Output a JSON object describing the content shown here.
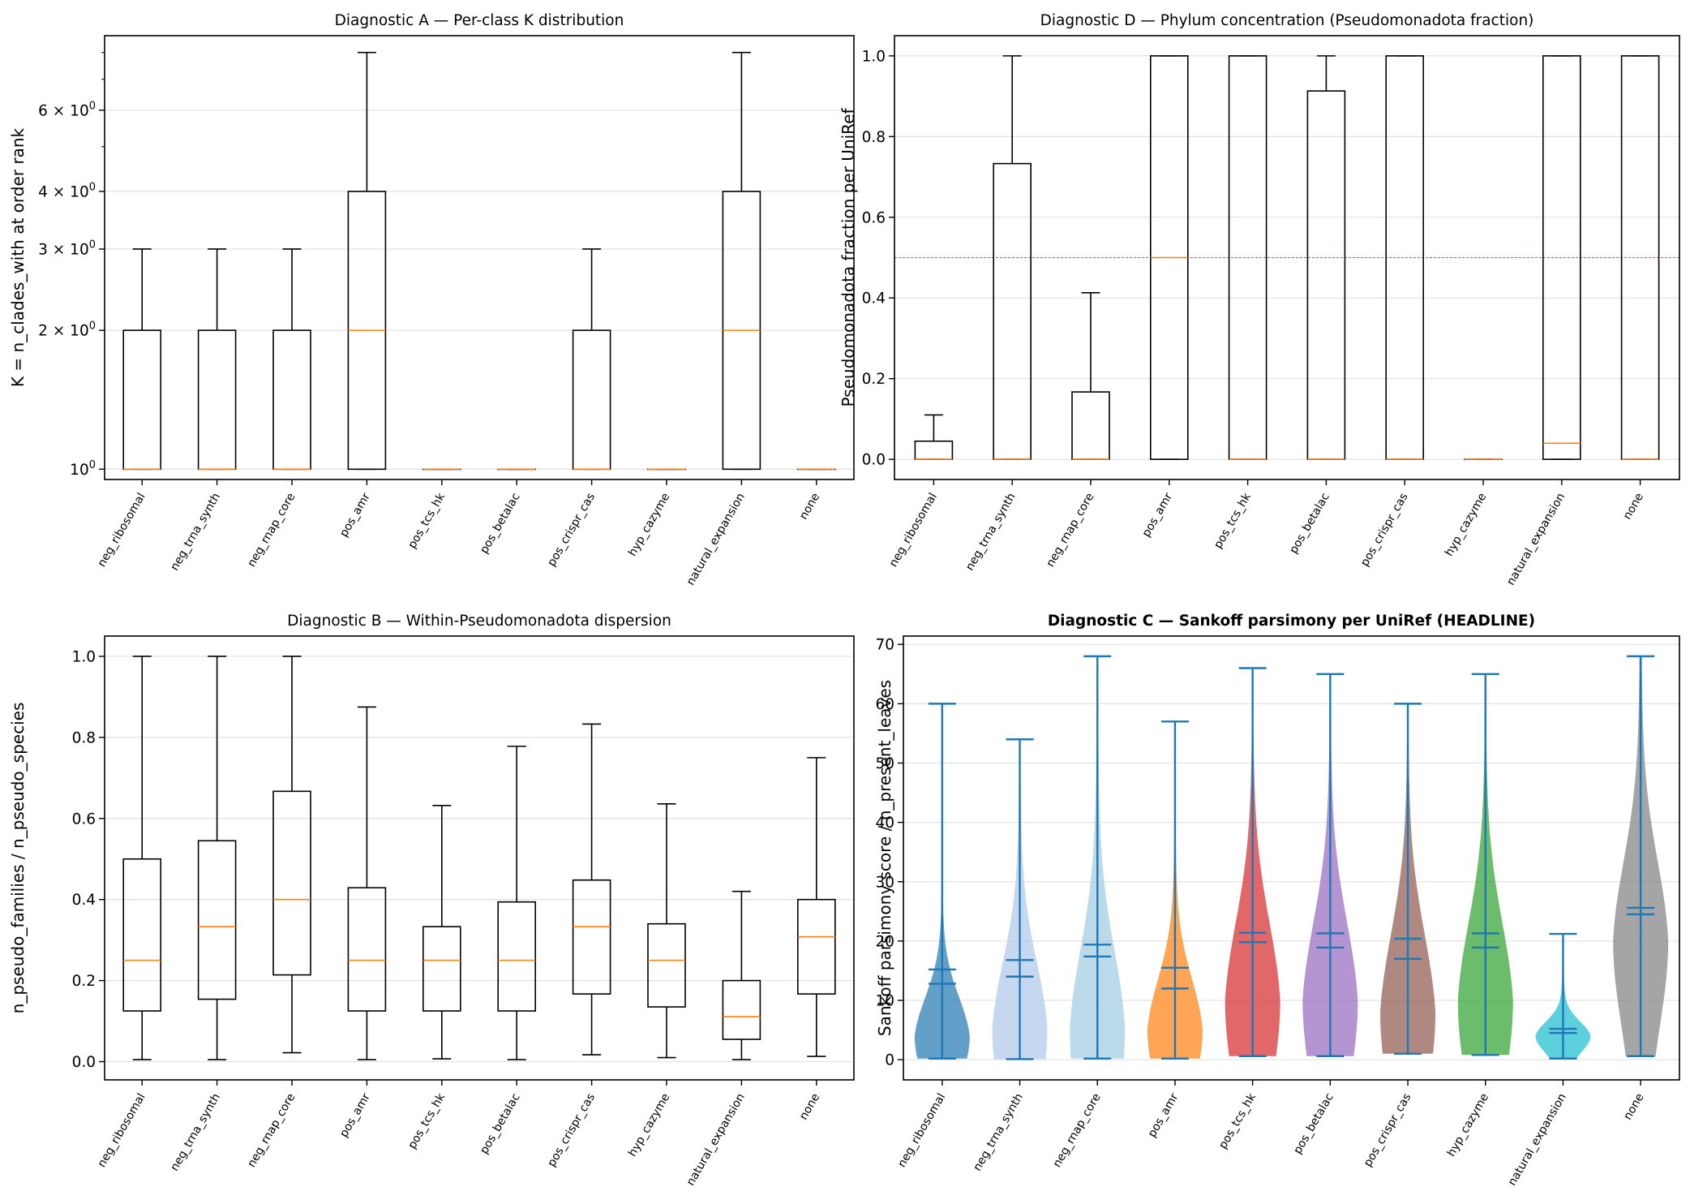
{
  "chart_data": [
    {
      "id": "A",
      "type": "box",
      "title": "Diagnostic A — Per-class K distribution",
      "title_bold": false,
      "ylabel": "K = n_clades_with at order rank",
      "yscale": "log",
      "ylim": [
        0.95,
        8.7
      ],
      "yticks": [
        {
          "value": 1,
          "base": "10",
          "exp": "0",
          "coef": ""
        },
        {
          "value": 2,
          "base": "10",
          "exp": "0",
          "coef": "2 × "
        },
        {
          "value": 3,
          "base": "10",
          "exp": "0",
          "coef": "3 × "
        },
        {
          "value": 4,
          "base": "10",
          "exp": "0",
          "coef": "4 × "
        },
        {
          "value": 6,
          "base": "10",
          "exp": "0",
          "coef": "6 × "
        }
      ],
      "minor_ticks": [
        5,
        7,
        8
      ],
      "grid": true,
      "categories": [
        "neg_ribosomal",
        "neg_trna_synth",
        "neg_rnap_core",
        "pos_amr",
        "pos_tcs_hk",
        "pos_betalac",
        "pos_crispr_cas",
        "hyp_cazyme",
        "natural_expansion",
        "none"
      ],
      "boxes": [
        {
          "wlo": 1,
          "q1": 1,
          "med": 1,
          "q3": 2,
          "whi": 3
        },
        {
          "wlo": 1,
          "q1": 1,
          "med": 1,
          "q3": 2,
          "whi": 3
        },
        {
          "wlo": 1,
          "q1": 1,
          "med": 1,
          "q3": 2,
          "whi": 3
        },
        {
          "wlo": 1,
          "q1": 1,
          "med": 2,
          "q3": 4,
          "whi": 8
        },
        {
          "wlo": 1,
          "q1": 1,
          "med": 1,
          "q3": 1,
          "whi": 1
        },
        {
          "wlo": 1,
          "q1": 1,
          "med": 1,
          "q3": 1,
          "whi": 1
        },
        {
          "wlo": 1,
          "q1": 1,
          "med": 1,
          "q3": 2,
          "whi": 3
        },
        {
          "wlo": 1,
          "q1": 1,
          "med": 1,
          "q3": 1,
          "whi": 1
        },
        {
          "wlo": 1,
          "q1": 1,
          "med": 2,
          "q3": 4,
          "whi": 8
        },
        {
          "wlo": 1,
          "q1": 1,
          "med": 1,
          "q3": 1,
          "whi": 1
        }
      ]
    },
    {
      "id": "D",
      "type": "box",
      "title": "Diagnostic D — Phylum concentration (Pseudomonadota fraction)",
      "title_bold": false,
      "ylabel": "Pseudomonadota fraction per UniRef",
      "yscale": "linear",
      "ylim": [
        -0.05,
        1.05
      ],
      "yticks": [
        {
          "value": 0.0,
          "label": "0.0"
        },
        {
          "value": 0.2,
          "label": "0.2"
        },
        {
          "value": 0.4,
          "label": "0.4"
        },
        {
          "value": 0.6,
          "label": "0.6"
        },
        {
          "value": 0.8,
          "label": "0.8"
        },
        {
          "value": 1.0,
          "label": "1.0"
        }
      ],
      "grid": true,
      "reference_line": 0.5,
      "reference_color": "#e8483b",
      "categories": [
        "neg_ribosomal",
        "neg_trna_synth",
        "neg_rnap_core",
        "pos_amr",
        "pos_tcs_hk",
        "pos_betalac",
        "pos_crispr_cas",
        "hyp_cazyme",
        "natural_expansion",
        "none"
      ],
      "boxes": [
        {
          "wlo": 0,
          "q1": 0,
          "med": 0,
          "q3": 0.045,
          "whi": 0.11
        },
        {
          "wlo": 0,
          "q1": 0,
          "med": 0,
          "q3": 0.733,
          "whi": 1.0
        },
        {
          "wlo": 0,
          "q1": 0,
          "med": 0,
          "q3": 0.167,
          "whi": 0.413
        },
        {
          "wlo": 0,
          "q1": 0,
          "med": 0.5,
          "q3": 1.0,
          "whi": 1.0
        },
        {
          "wlo": 0,
          "q1": 0,
          "med": 0,
          "q3": 1.0,
          "whi": 1.0
        },
        {
          "wlo": 0,
          "q1": 0,
          "med": 0,
          "q3": 0.913,
          "whi": 1.0
        },
        {
          "wlo": 0,
          "q1": 0,
          "med": 0,
          "q3": 1.0,
          "whi": 1.0
        },
        {
          "wlo": 0,
          "q1": 0,
          "med": 0,
          "q3": 0,
          "whi": 0
        },
        {
          "wlo": 0,
          "q1": 0,
          "med": 0.04,
          "q3": 1.0,
          "whi": 1.0
        },
        {
          "wlo": 0,
          "q1": 0,
          "med": 0,
          "q3": 1.0,
          "whi": 1.0
        }
      ]
    },
    {
      "id": "B",
      "type": "box",
      "title": "Diagnostic B — Within-Pseudomonadota dispersion",
      "title_bold": false,
      "ylabel": "n_pseudo_families / n_pseudo_species",
      "yscale": "linear",
      "ylim": [
        -0.045,
        1.05
      ],
      "yticks": [
        {
          "value": 0.0,
          "label": "0.0"
        },
        {
          "value": 0.2,
          "label": "0.2"
        },
        {
          "value": 0.4,
          "label": "0.4"
        },
        {
          "value": 0.6,
          "label": "0.6"
        },
        {
          "value": 0.8,
          "label": "0.8"
        },
        {
          "value": 1.0,
          "label": "1.0"
        }
      ],
      "grid": true,
      "categories": [
        "neg_ribosomal",
        "neg_trna_synth",
        "neg_rnap_core",
        "pos_amr",
        "pos_tcs_hk",
        "pos_betalac",
        "pos_crispr_cas",
        "hyp_cazyme",
        "natural_expansion",
        "none"
      ],
      "boxes": [
        {
          "wlo": 0.005,
          "q1": 0.125,
          "med": 0.25,
          "q3": 0.5,
          "whi": 1.0
        },
        {
          "wlo": 0.005,
          "q1": 0.154,
          "med": 0.333,
          "q3": 0.545,
          "whi": 1.0
        },
        {
          "wlo": 0.022,
          "q1": 0.214,
          "med": 0.4,
          "q3": 0.667,
          "whi": 1.0
        },
        {
          "wlo": 0.005,
          "q1": 0.125,
          "med": 0.25,
          "q3": 0.429,
          "whi": 0.875
        },
        {
          "wlo": 0.007,
          "q1": 0.125,
          "med": 0.25,
          "q3": 0.333,
          "whi": 0.632
        },
        {
          "wlo": 0.005,
          "q1": 0.125,
          "med": 0.25,
          "q3": 0.394,
          "whi": 0.778
        },
        {
          "wlo": 0.017,
          "q1": 0.167,
          "med": 0.333,
          "q3": 0.448,
          "whi": 0.833
        },
        {
          "wlo": 0.01,
          "q1": 0.135,
          "med": 0.25,
          "q3": 0.34,
          "whi": 0.636
        },
        {
          "wlo": 0.005,
          "q1": 0.055,
          "med": 0.111,
          "q3": 0.2,
          "whi": 0.42
        },
        {
          "wlo": 0.013,
          "q1": 0.167,
          "med": 0.308,
          "q3": 0.4,
          "whi": 0.75
        }
      ]
    },
    {
      "id": "C",
      "type": "violin",
      "title": "Diagnostic C — Sankoff parsimony per UniRef (HEADLINE)",
      "title_bold": true,
      "ylabel": "Sankoff parsimony score / n_present_leaves",
      "yscale": "linear",
      "ylim": [
        -3.4,
        71.4
      ],
      "yticks": [
        {
          "value": 0,
          "label": "0"
        },
        {
          "value": 10,
          "label": "10"
        },
        {
          "value": 20,
          "label": "20"
        },
        {
          "value": 30,
          "label": "30"
        },
        {
          "value": 40,
          "label": "40"
        },
        {
          "value": 50,
          "label": "50"
        },
        {
          "value": 60,
          "label": "60"
        },
        {
          "value": 70,
          "label": "70"
        }
      ],
      "grid": true,
      "line_color": "#1f77b4",
      "categories": [
        "neg_ribosomal",
        "neg_trna_synth",
        "neg_rnap_core",
        "pos_amr",
        "pos_tcs_hk",
        "pos_betalac",
        "pos_crispr_cas",
        "hyp_cazyme",
        "natural_expansion",
        "none"
      ],
      "violins": [
        {
          "color": "#1f77b4",
          "min": 0.2,
          "max": 60,
          "mean": 15.2,
          "median": 12.8,
          "peak": 4,
          "spread": 7,
          "tail": 4
        },
        {
          "color": "#aec7e8",
          "min": 0.1,
          "max": 54,
          "mean": 16.8,
          "median": 14.0,
          "peak": 5,
          "spread": 12,
          "tail": 8
        },
        {
          "color": "#9ecae1",
          "min": 0.2,
          "max": 68,
          "mean": 19.4,
          "median": 17.4,
          "peak": 5,
          "spread": 14,
          "tail": 10
        },
        {
          "color": "#ff7f0e",
          "min": 0.2,
          "max": 57,
          "mean": 15.5,
          "median": 12.0,
          "peak": 5,
          "spread": 9,
          "tail": 6
        },
        {
          "color": "#d62728",
          "min": 0.6,
          "max": 66,
          "mean": 21.4,
          "median": 19.8,
          "peak": 10,
          "spread": 14,
          "tail": 8
        },
        {
          "color": "#9467bd",
          "min": 0.6,
          "max": 65,
          "mean": 21.3,
          "median": 18.9,
          "peak": 10,
          "spread": 14,
          "tail": 8
        },
        {
          "color": "#8c564b",
          "min": 1.0,
          "max": 60,
          "mean": 20.4,
          "median": 17.0,
          "peak": 8,
          "spread": 14,
          "tail": 8
        },
        {
          "color": "#2ca02c",
          "min": 0.8,
          "max": 65,
          "mean": 21.3,
          "median": 18.9,
          "peak": 10,
          "spread": 14,
          "tail": 8
        },
        {
          "color": "#17becf",
          "min": 0.2,
          "max": 21.2,
          "mean": 5.2,
          "median": 4.5,
          "peak": 4,
          "spread": 2.5,
          "tail": 2
        },
        {
          "color": "#7f7f7f",
          "min": 0.6,
          "max": 68,
          "mean": 25.6,
          "median": 24.5,
          "peak": 20,
          "spread": 14,
          "tail": 10
        }
      ]
    }
  ]
}
